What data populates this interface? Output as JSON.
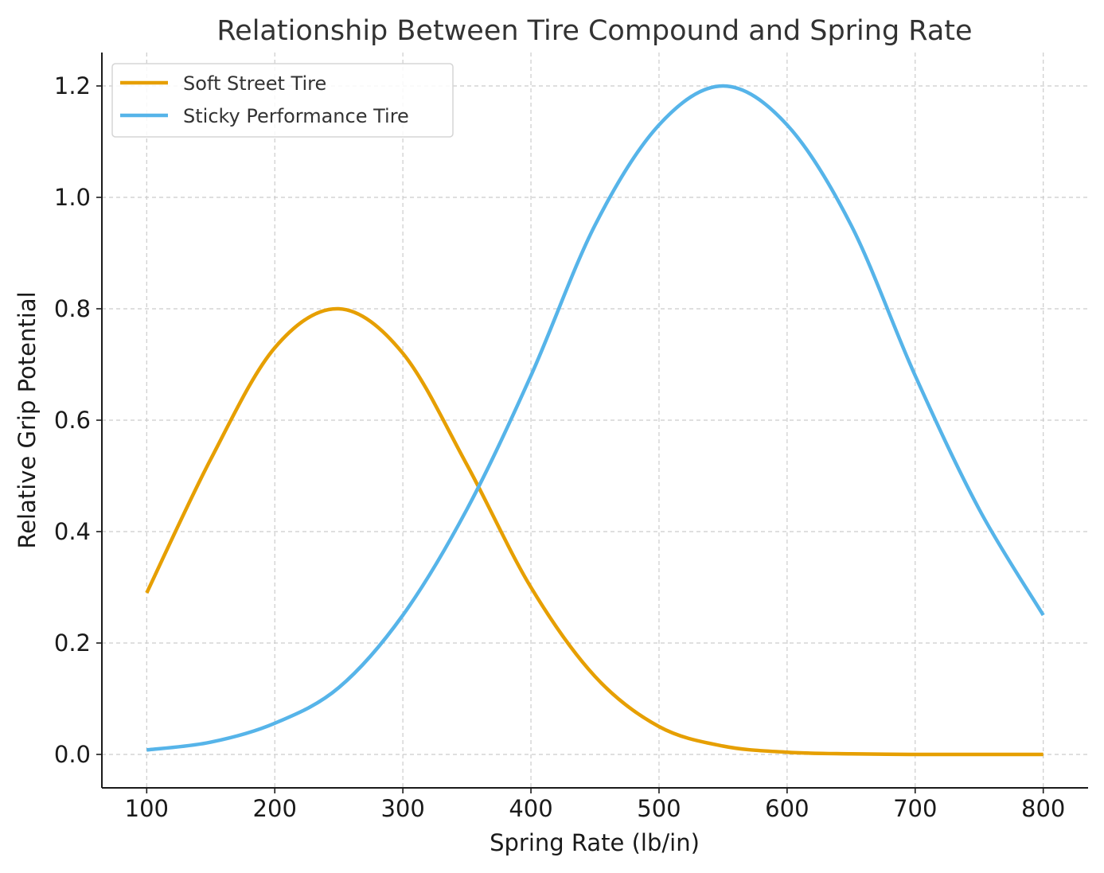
{
  "chart_data": {
    "type": "line",
    "title": "Relationship Between Tire Compound and Spring Rate",
    "xlabel": "Spring Rate (lb/in)",
    "ylabel": "Relative Grip Potential",
    "xlim": [
      65,
      835
    ],
    "ylim": [
      -0.06,
      1.26
    ],
    "xticks": [
      100,
      200,
      300,
      400,
      500,
      600,
      700,
      800
    ],
    "yticks": [
      0.0,
      0.2,
      0.4,
      0.6,
      0.8,
      1.0,
      1.2
    ],
    "xtick_labels": [
      "100",
      "200",
      "300",
      "400",
      "500",
      "600",
      "700",
      "800"
    ],
    "ytick_labels": [
      "0.0",
      "0.2",
      "0.4",
      "0.6",
      "0.8",
      "1.0",
      "1.2"
    ],
    "grid": true,
    "legend_position": "top-left",
    "x": [
      100,
      150,
      200,
      250,
      300,
      350,
      400,
      450,
      500,
      550,
      600,
      650,
      700,
      750,
      800
    ],
    "series": [
      {
        "name": "Soft Street Tire",
        "color": "#E69F00",
        "values": [
          0.29,
          0.53,
          0.73,
          0.8,
          0.72,
          0.52,
          0.3,
          0.14,
          0.05,
          0.015,
          0.004,
          0.001,
          0.0,
          0.0,
          0.0
        ]
      },
      {
        "name": "Sticky Performance Tire",
        "color": "#56B4E9",
        "values": [
          0.008,
          0.022,
          0.056,
          0.12,
          0.25,
          0.44,
          0.68,
          0.95,
          1.13,
          1.2,
          1.13,
          0.95,
          0.68,
          0.44,
          0.25
        ]
      }
    ]
  }
}
